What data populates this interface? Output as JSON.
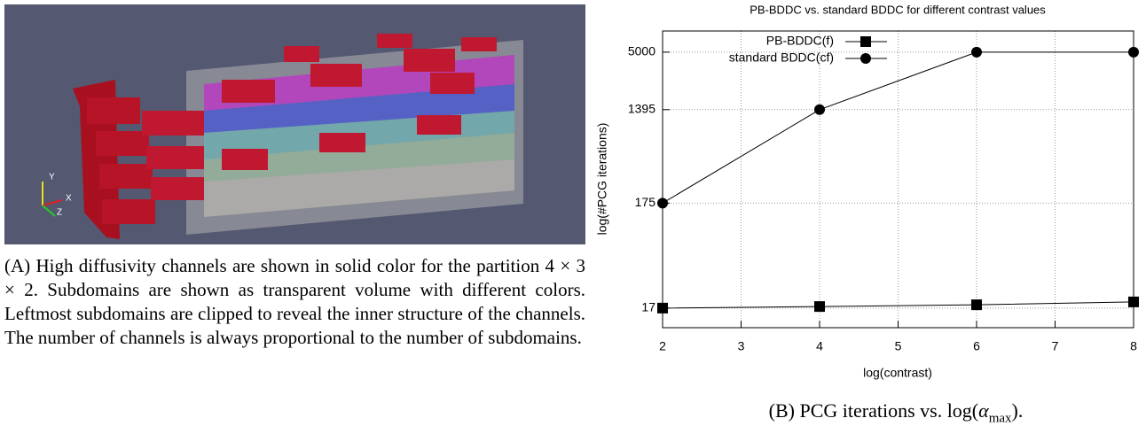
{
  "figure_a": {
    "axis_labels": [
      "Y",
      "Z",
      "X"
    ],
    "caption": {
      "label": "(A)",
      "text": "High diffusivity channels are shown in solid color for the partition 4 × 3 × 2. Subdomains are shown as transparent volume with different colors. Leftmost subdomains are clipped to reveal the inner structure of the channels. The number of channels is always proportional to the number of subdomains."
    }
  },
  "chart_data": {
    "type": "line",
    "title": "PB-BDDC vs. standard BDDC for different contrast values",
    "x_label": "log(contrast)",
    "y_label": "log(#PCG iterations)",
    "x": [
      2,
      4,
      6,
      8
    ],
    "series": [
      {
        "name": "PB-BDDC(f)",
        "color": "#000000",
        "marker": "square",
        "values": [
          17,
          17.6,
          18.3,
          19.5
        ]
      },
      {
        "name": "standard BDDC(cf)",
        "color": "#000000",
        "marker": "circle",
        "values": [
          175,
          1395,
          5000,
          5000
        ]
      }
    ],
    "xlim": [
      2,
      8
    ],
    "xticks": [
      2,
      3,
      4,
      5,
      6,
      7,
      8
    ],
    "ylim": [
      11,
      8000
    ],
    "yticks": [
      17,
      175,
      1395,
      5000
    ],
    "y_scale": "log",
    "grid": true,
    "legend": "upper right"
  },
  "caption_b": {
    "label": "(B)",
    "text": "PCG iterations vs. log(",
    "symbol": "α",
    "subscript": "max",
    "tail": ")."
  }
}
